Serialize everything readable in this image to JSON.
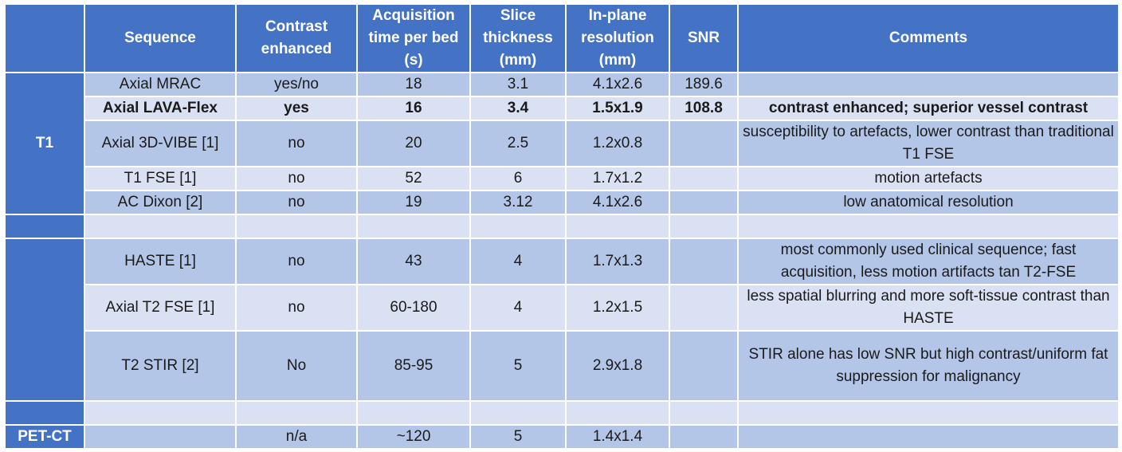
{
  "headers": {
    "group": "",
    "sequence": "Sequence",
    "contrast": "Contrast enhanced",
    "acq_time": "Acquisition time per bed (s)",
    "slice": "Slice thickness (mm)",
    "resolution": "In-plane resolution (mm)",
    "snr": "SNR",
    "comments": "Comments"
  },
  "groups": {
    "t1": "T1",
    "t2": "",
    "petct": "PET-CT"
  },
  "rows": [
    {
      "sequence": "Axial MRAC",
      "contrast": "yes/no",
      "acq_time": "18",
      "slice": "3.1",
      "resolution": "4.1x2.6",
      "snr": "189.6",
      "comments": ""
    },
    {
      "sequence": "Axial LAVA-Flex",
      "contrast": "yes",
      "acq_time": "16",
      "slice": "3.4",
      "resolution": "1.5x1.9",
      "snr": "108.8",
      "comments": "contrast enhanced; superior vessel contrast"
    },
    {
      "sequence": "Axial 3D-VIBE [1]",
      "contrast": "no",
      "acq_time": "20",
      "slice": "2.5",
      "resolution": "1.2x0.8",
      "snr": "",
      "comments": "susceptibility to artefacts, lower contrast than traditional T1 FSE"
    },
    {
      "sequence": "T1 FSE [1]",
      "contrast": "no",
      "acq_time": "52",
      "slice": "6",
      "resolution": "1.7x1.2",
      "snr": "",
      "comments": "motion artefacts"
    },
    {
      "sequence": "AC Dixon [2]",
      "contrast": "no",
      "acq_time": "19",
      "slice": "3.12",
      "resolution": "4.1x2.6",
      "snr": "",
      "comments": "low anatomical resolution"
    },
    {
      "sequence": "HASTE [1]",
      "contrast": "no",
      "acq_time": "43",
      "slice": "4",
      "resolution": "1.7x1.3",
      "snr": "",
      "comments": "most commonly used clinical sequence; fast acquisition, less motion artifacts tan T2-FSE"
    },
    {
      "sequence": "Axial T2 FSE [1]",
      "contrast": "no",
      "acq_time": "60-180",
      "slice": "4",
      "resolution": "1.2x1.5",
      "snr": "",
      "comments": "less spatial blurring and more soft-tissue contrast than HASTE"
    },
    {
      "sequence": "T2 STIR [2]",
      "contrast": "No",
      "acq_time": "85-95",
      "slice": "5",
      "resolution": "2.9x1.8",
      "snr": "",
      "comments": "STIR alone has low SNR but high contrast/uniform fat suppression for malignancy"
    },
    {
      "sequence": "",
      "contrast": "n/a",
      "acq_time": "~120",
      "slice": "5",
      "resolution": "1.4x1.4",
      "snr": "",
      "comments": ""
    }
  ],
  "colors": {
    "header_bg": "#4472c4",
    "row_dark": "#b4c6e7",
    "row_light": "#d9e1f2"
  }
}
